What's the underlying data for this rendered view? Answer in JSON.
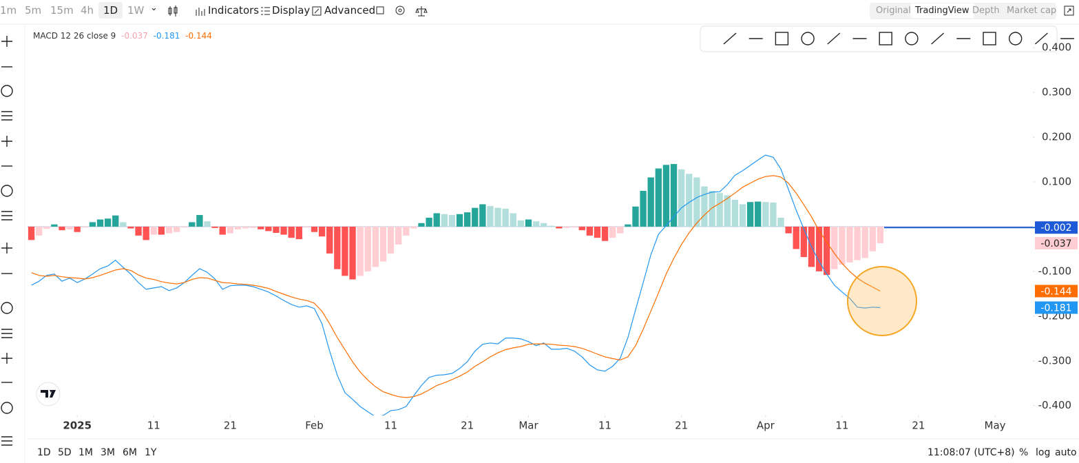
{
  "toolbar": {
    "intervals": [
      "1m",
      "5m",
      "15m",
      "4h",
      "1D",
      "1W"
    ],
    "active_interval": "1D",
    "buttons": [
      "Indicators",
      "Display",
      "Advanced"
    ],
    "views": [
      "Original",
      "TradingView",
      "Depth",
      "Market cap"
    ],
    "active_view": "TradingView"
  },
  "chart_data": {
    "type": "macd",
    "indicator_label": "MACD 12 26 close 9",
    "x": [
      "2024-12-26",
      "2024-12-27",
      "2024-12-28",
      "2024-12-29",
      "2024-12-30",
      "2024-12-31",
      "2025-01-01",
      "2025-01-02",
      "2025-01-03",
      "2025-01-04",
      "2025-01-05",
      "2025-01-06",
      "2025-01-07",
      "2025-01-08",
      "2025-01-09",
      "2025-01-10",
      "2025-01-11",
      "2025-01-12",
      "2025-01-13",
      "2025-01-14",
      "2025-01-15",
      "2025-01-16",
      "2025-01-17",
      "2025-01-18",
      "2025-01-19",
      "2025-01-20",
      "2025-01-21",
      "2025-01-22",
      "2025-01-23",
      "2025-01-24",
      "2025-01-25",
      "2025-01-26",
      "2025-01-27",
      "2025-01-28",
      "2025-01-29",
      "2025-01-30",
      "2025-01-31",
      "2025-02-01",
      "2025-02-02",
      "2025-02-03",
      "2025-02-04",
      "2025-02-05",
      "2025-02-06",
      "2025-02-07",
      "2025-02-08",
      "2025-02-09",
      "2025-02-10",
      "2025-02-11",
      "2025-02-12",
      "2025-02-13",
      "2025-02-14",
      "2025-02-15",
      "2025-02-16",
      "2025-02-17",
      "2025-02-18",
      "2025-02-19",
      "2025-02-20",
      "2025-02-21",
      "2025-02-22",
      "2025-02-23",
      "2025-02-24",
      "2025-02-25",
      "2025-02-26",
      "2025-02-27",
      "2025-02-28",
      "2025-03-01",
      "2025-03-02",
      "2025-03-03",
      "2025-03-04",
      "2025-03-05",
      "2025-03-06",
      "2025-03-07",
      "2025-03-08",
      "2025-03-09",
      "2025-03-10",
      "2025-03-11",
      "2025-03-12",
      "2025-03-13",
      "2025-03-14",
      "2025-03-15",
      "2025-03-16",
      "2025-03-17",
      "2025-03-18",
      "2025-03-19",
      "2025-03-20",
      "2025-03-21",
      "2025-03-22",
      "2025-03-23",
      "2025-03-24",
      "2025-03-25",
      "2025-03-26",
      "2025-03-27",
      "2025-03-28",
      "2025-03-29",
      "2025-03-30",
      "2025-03-31",
      "2025-04-01",
      "2025-04-02",
      "2025-04-03",
      "2025-04-04",
      "2025-04-05",
      "2025-04-06",
      "2025-04-07",
      "2025-04-08",
      "2025-04-09",
      "2025-04-10",
      "2025-04-11",
      "2025-04-12",
      "2025-04-13",
      "2025-04-14",
      "2025-04-15",
      "2025-04-16"
    ],
    "series": [
      {
        "type": "bar",
        "colors": {
          "up_rising": "#26a69a",
          "up_falling": "#b2dfdb",
          "down_falling": "#ff5252",
          "down_rising": "#ffcdd2"
        },
        "values": [
          -0.03,
          -0.02,
          -0.005,
          0.005,
          -0.008,
          -0.006,
          -0.012,
          -0.002,
          0.01,
          0.016,
          0.018,
          0.025,
          0.01,
          -0.004,
          -0.02,
          -0.03,
          -0.018,
          -0.018,
          -0.015,
          -0.012,
          -0.002,
          0.01,
          0.026,
          0.012,
          -0.003,
          -0.018,
          -0.015,
          -0.006,
          -0.004,
          -0.003,
          -0.006,
          -0.01,
          -0.014,
          -0.018,
          -0.025,
          -0.028,
          -0.002,
          -0.012,
          -0.022,
          -0.06,
          -0.095,
          -0.11,
          -0.118,
          -0.11,
          -0.1,
          -0.09,
          -0.078,
          -0.06,
          -0.04,
          -0.02,
          -0.004,
          0.008,
          0.02,
          0.03,
          0.028,
          0.026,
          0.028,
          0.032,
          0.042,
          0.05,
          0.046,
          0.042,
          0.04,
          0.03,
          0.014,
          0.016,
          0.012,
          0.008,
          0.002,
          -0.004,
          -0.003,
          -0.002,
          -0.008,
          -0.02,
          -0.025,
          -0.032,
          -0.025,
          -0.015,
          0.005,
          0.045,
          0.08,
          0.11,
          0.13,
          0.138,
          0.14,
          0.128,
          0.118,
          0.11,
          0.09,
          0.08,
          0.075,
          0.07,
          0.06,
          0.05,
          0.055,
          0.056,
          0.055,
          0.054,
          0.02,
          -0.015,
          -0.05,
          -0.068,
          -0.09,
          -0.1,
          -0.108,
          -0.095,
          -0.085,
          -0.08,
          -0.075,
          -0.07,
          -0.055,
          -0.037
        ]
      },
      {
        "type": "line",
        "color": "#2196f3",
        "values": [
          -0.131,
          -0.122,
          -0.109,
          -0.106,
          -0.122,
          -0.115,
          -0.125,
          -0.117,
          -0.106,
          -0.094,
          -0.088,
          -0.075,
          -0.091,
          -0.106,
          -0.125,
          -0.14,
          -0.137,
          -0.134,
          -0.143,
          -0.137,
          -0.125,
          -0.109,
          -0.094,
          -0.102,
          -0.117,
          -0.14,
          -0.132,
          -0.131,
          -0.131,
          -0.134,
          -0.14,
          -0.146,
          -0.155,
          -0.165,
          -0.174,
          -0.18,
          -0.177,
          -0.183,
          -0.217,
          -0.278,
          -0.332,
          -0.371,
          -0.386,
          -0.402,
          -0.414,
          -0.425,
          -0.422,
          -0.411,
          -0.409,
          -0.402,
          -0.378,
          -0.355,
          -0.337,
          -0.332,
          -0.331,
          -0.328,
          -0.317,
          -0.302,
          -0.278,
          -0.263,
          -0.26,
          -0.262,
          -0.249,
          -0.249,
          -0.251,
          -0.257,
          -0.266,
          -0.26,
          -0.274,
          -0.274,
          -0.272,
          -0.278,
          -0.291,
          -0.309,
          -0.32,
          -0.323,
          -0.312,
          -0.294,
          -0.248,
          -0.186,
          -0.125,
          -0.063,
          -0.017,
          0.002,
          0.022,
          0.042,
          0.054,
          0.065,
          0.072,
          0.077,
          0.078,
          0.094,
          0.115,
          0.125,
          0.137,
          0.149,
          0.16,
          0.155,
          0.129,
          0.083,
          0.037,
          -0.005,
          -0.045,
          -0.078,
          -0.106,
          -0.131,
          -0.146,
          -0.16,
          -0.18,
          -0.182,
          -0.18,
          -0.181
        ]
      },
      {
        "type": "line",
        "color": "#ff6d00",
        "values": [
          -0.103,
          -0.109,
          -0.111,
          -0.109,
          -0.112,
          -0.114,
          -0.115,
          -0.117,
          -0.114,
          -0.109,
          -0.103,
          -0.097,
          -0.094,
          -0.098,
          -0.108,
          -0.115,
          -0.118,
          -0.123,
          -0.126,
          -0.128,
          -0.125,
          -0.118,
          -0.114,
          -0.115,
          -0.12,
          -0.125,
          -0.126,
          -0.128,
          -0.129,
          -0.131,
          -0.134,
          -0.138,
          -0.145,
          -0.151,
          -0.157,
          -0.162,
          -0.165,
          -0.171,
          -0.189,
          -0.217,
          -0.248,
          -0.275,
          -0.302,
          -0.325,
          -0.343,
          -0.358,
          -0.369,
          -0.375,
          -0.38,
          -0.382,
          -0.38,
          -0.374,
          -0.365,
          -0.355,
          -0.349,
          -0.342,
          -0.334,
          -0.325,
          -0.312,
          -0.302,
          -0.291,
          -0.282,
          -0.275,
          -0.271,
          -0.268,
          -0.263,
          -0.262,
          -0.262,
          -0.263,
          -0.265,
          -0.266,
          -0.268,
          -0.272,
          -0.278,
          -0.285,
          -0.291,
          -0.295,
          -0.298,
          -0.291,
          -0.266,
          -0.229,
          -0.189,
          -0.148,
          -0.106,
          -0.071,
          -0.04,
          -0.014,
          0.008,
          0.026,
          0.042,
          0.052,
          0.063,
          0.075,
          0.088,
          0.097,
          0.106,
          0.112,
          0.114,
          0.111,
          0.097,
          0.075,
          0.049,
          0.022,
          -0.009,
          -0.035,
          -0.06,
          -0.082,
          -0.1,
          -0.115,
          -0.126,
          -0.135,
          -0.144
        ]
      }
    ],
    "price_line": {
      "value": -0.002,
      "color": "#1e5ad6"
    },
    "xlim": [
      "2024-12-26",
      "2025-05-06"
    ],
    "xticks": [
      {
        "value": "2025-01-01",
        "label": "2025"
      },
      {
        "value": "2025-01-11",
        "label": "11"
      },
      {
        "value": "2025-01-21",
        "label": "21"
      },
      {
        "value": "2025-02-01",
        "label": "Feb"
      },
      {
        "value": "2025-02-11",
        "label": "11"
      },
      {
        "value": "2025-02-21",
        "label": "21"
      },
      {
        "value": "2025-03-01",
        "label": "Mar"
      },
      {
        "value": "2025-03-11",
        "label": "11"
      },
      {
        "value": "2025-03-21",
        "label": "21"
      },
      {
        "value": "2025-04-01",
        "label": "Apr"
      },
      {
        "value": "2025-04-11",
        "label": "11"
      },
      {
        "value": "2025-04-21",
        "label": "21"
      },
      {
        "value": "2025-05-01",
        "label": "May"
      }
    ],
    "ylim": [
      -0.422,
      0.448
    ],
    "yticks": [
      {
        "value": 0.4,
        "label": "0.400"
      },
      {
        "value": 0.3,
        "label": "0.300"
      },
      {
        "value": 0.2,
        "label": "0.200"
      },
      {
        "value": 0.1,
        "label": "0.100"
      },
      {
        "value": -0.1,
        "label": "-0.100"
      },
      {
        "value": -0.2,
        "label": "-0.200"
      },
      {
        "value": -0.3,
        "label": "-0.300"
      },
      {
        "value": -0.4,
        "label": "-0.400"
      }
    ],
    "grid": false
  },
  "footer": {
    "ranges": [
      "1D",
      "5D",
      "1M",
      "3M",
      "6M",
      "1Y"
    ],
    "clock": "11:08:07 (UTC+8)",
    "options": [
      "%",
      "log",
      "auto"
    ]
  }
}
